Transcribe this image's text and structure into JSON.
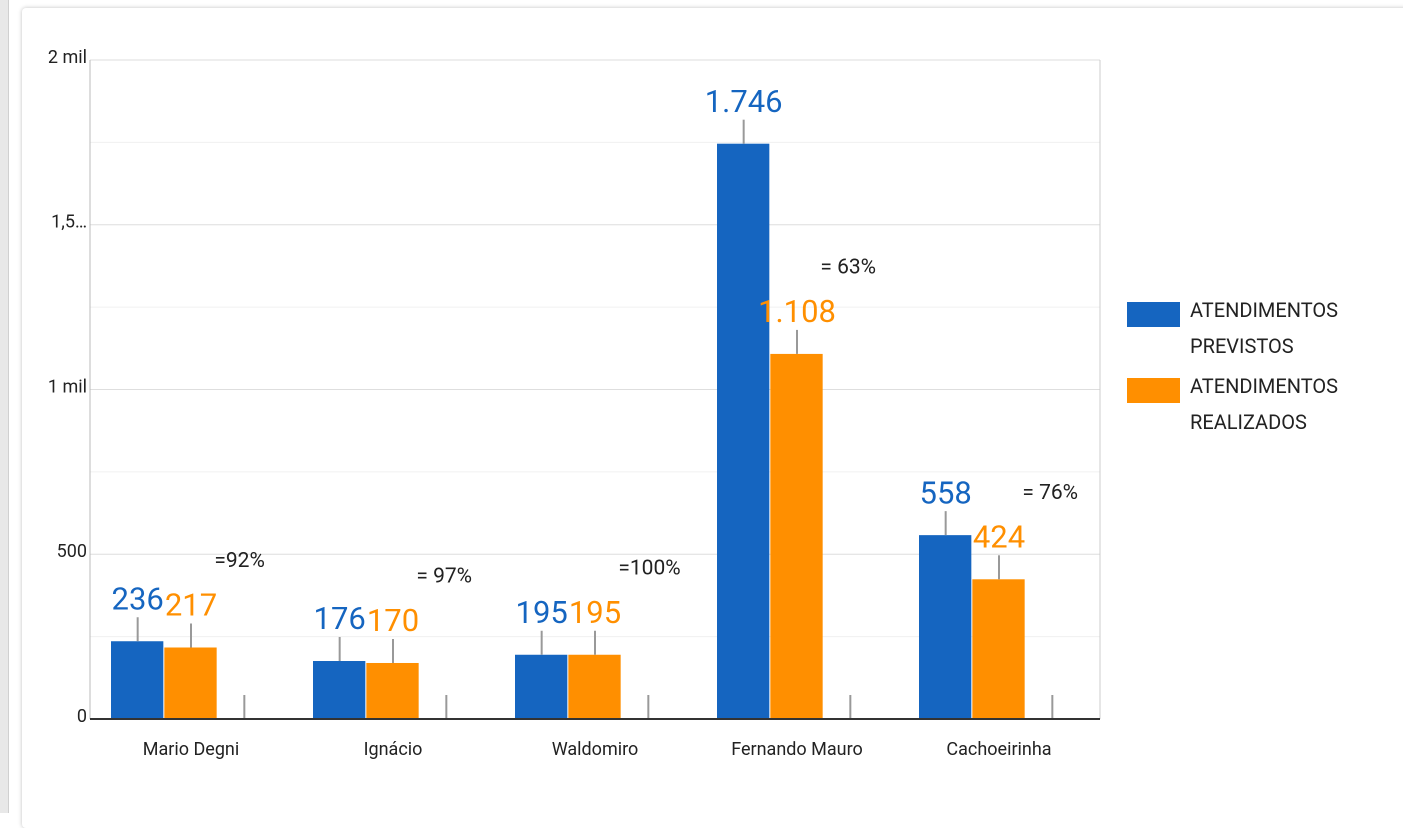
{
  "chart_data": {
    "type": "bar",
    "categories": [
      "Mario Degni",
      "Ignácio",
      "Waldomiro",
      "Fernando Mauro",
      "Cachoeirinha"
    ],
    "series": [
      {
        "name": "ATENDIMENTOS PREVISTOS",
        "color": "#1565c0",
        "values": [
          236,
          176,
          195,
          1746,
          558
        ],
        "value_labels": [
          "236",
          "176",
          "195",
          "1.746",
          "558"
        ]
      },
      {
        "name": "ATENDIMENTOS REALIZADOS",
        "color": "#ff8f00",
        "values": [
          217,
          170,
          195,
          1108,
          424
        ],
        "value_labels": [
          "217",
          "170",
          "195",
          "1.108",
          "424"
        ]
      }
    ],
    "annotations": [
      "=92%",
      "= 97%",
      "=100%",
      "= 63%",
      "= 76%"
    ],
    "ylim": [
      0,
      2000
    ],
    "yticks": [
      0,
      500,
      {
        "value": 1000,
        "label": "1 mil"
      },
      {
        "value": 1500,
        "label": "1,5…"
      },
      {
        "value": 2000,
        "label": "2 mil"
      }
    ],
    "grid": true,
    "legend": "right"
  }
}
